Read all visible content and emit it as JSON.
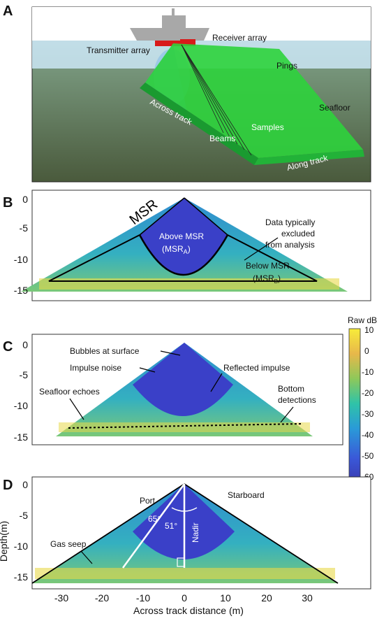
{
  "panel_letters": [
    "A",
    "B",
    "C",
    "D"
  ],
  "panel_a": {
    "labels": {
      "receiver": "Receiver array",
      "transmitter": "Transmitter array",
      "pings": "Pings",
      "seafloor": "Seafloor",
      "across": "Across track",
      "samples": "Samples",
      "beams": "Beams",
      "along": "Along track"
    }
  },
  "panel_b": {
    "msr": "MSR",
    "above_line1": "Above MSR",
    "above_line2": "(MSR",
    "above_sub": "A",
    "above_close": ")",
    "below_line1": "Below MSR",
    "below_line2": "(MSR",
    "below_sub": "B",
    "below_close": ")",
    "excluded_line1": "Data typically",
    "excluded_line2": "excluded",
    "excluded_line3": "from analysis"
  },
  "panel_c": {
    "bubbles": "Bubbles at surface",
    "impulse": "Impulse noise",
    "reflected": "Reflected impulse",
    "seafloor_echoes": "Seafloor echoes",
    "bottom_line1": "Bottom",
    "bottom_line2": "detections"
  },
  "panel_d": {
    "port": "Port",
    "starboard": "Starboard",
    "angle_65": "65°",
    "angle_51": "51°",
    "nadir": "Nadir",
    "gas_seep": "Gas seep"
  },
  "axes": {
    "y_ticks": [
      "0",
      "-5",
      "-10",
      "-15"
    ],
    "d_y_ticks": [
      "0",
      "-5",
      "-10",
      "-15"
    ],
    "x_ticks": [
      "-30",
      "-20",
      "-10",
      "0",
      "10",
      "20",
      "30"
    ],
    "xlabel": "Across track distance (m)",
    "ylabel": "Depth(m)"
  },
  "colorbar": {
    "title": "Raw dB",
    "ticks": [
      "10",
      "0",
      "-10",
      "-20",
      "-30",
      "-40",
      "-50",
      "-60"
    ]
  },
  "colors": {
    "water_blue": "#3a44c8",
    "cyan": "#2fb4c8",
    "green": "#7ac86a",
    "yellow": "#f2d23a",
    "sea": "#6a7a54"
  }
}
